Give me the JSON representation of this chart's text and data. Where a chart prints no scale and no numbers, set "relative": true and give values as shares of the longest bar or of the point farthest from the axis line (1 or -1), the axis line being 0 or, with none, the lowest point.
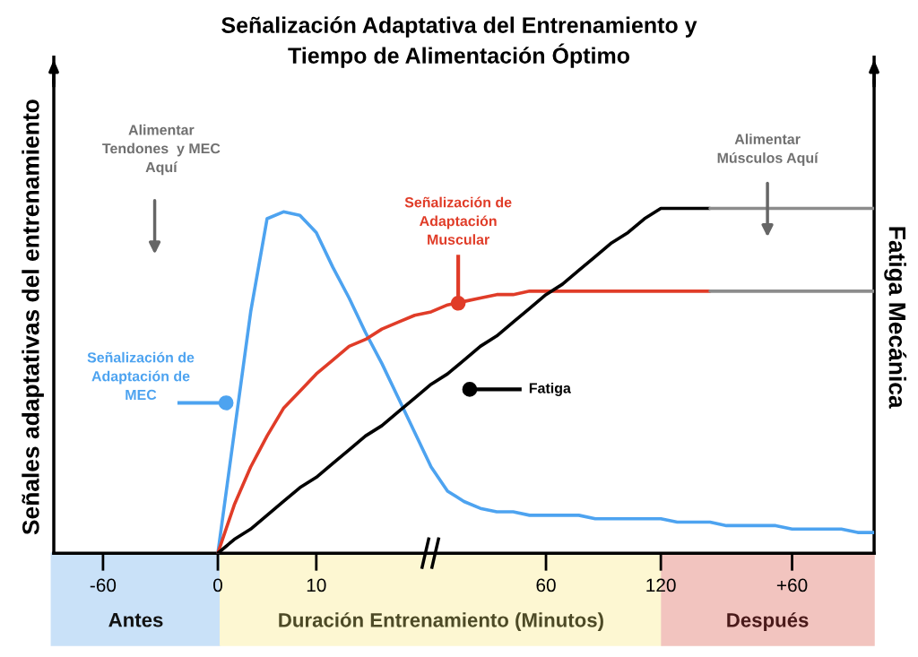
{
  "chart_data": {
    "type": "line",
    "title": "Señalización Adaptativa del Entrenamiento y\nTiempo de Alimentación Óptimo",
    "ylabel": "Señales adaptativas del entrenamiento",
    "y2label": "Fatiga Mecánica",
    "relative": true,
    "tick_labels": "x",
    "categories": [
      null,
      null,
      null,
      "-60",
      null,
      null,
      null,
      null,
      null,
      null,
      "0",
      null,
      null,
      null,
      null,
      null,
      "10",
      null,
      null,
      null,
      null,
      null,
      null,
      null,
      null,
      null,
      null,
      null,
      null,
      null,
      "60",
      null,
      null,
      null,
      null,
      null,
      null,
      "120",
      null,
      null,
      null,
      null,
      null,
      null,
      null,
      "+60",
      null,
      null,
      null,
      null,
      null
    ],
    "series": [
      {
        "name": "Señalización de\nAdaptación de\nMEC",
        "color": "#4da3f0",
        "values": [
          null,
          null,
          null,
          null,
          null,
          null,
          null,
          null,
          null,
          null,
          0,
          0.35,
          0.7,
          0.97,
          0.99,
          0.98,
          0.93,
          0.83,
          0.74,
          0.64,
          0.55,
          0.45,
          0.35,
          0.25,
          0.18,
          0.15,
          0.13,
          0.12,
          0.12,
          0.11,
          0.11,
          0.11,
          0.11,
          0.1,
          0.1,
          0.1,
          0.1,
          0.1,
          0.09,
          0.09,
          0.09,
          0.08,
          0.08,
          0.08,
          0.08,
          0.07,
          0.07,
          0.07,
          0.07,
          0.06,
          0.06
        ]
      },
      {
        "name": "Señalización de\nAdaptación\nMuscular",
        "color": "#e03c28",
        "values": [
          null,
          null,
          null,
          null,
          null,
          null,
          null,
          null,
          null,
          null,
          0,
          0.14,
          0.25,
          0.34,
          0.42,
          0.47,
          0.52,
          0.56,
          0.6,
          0.62,
          0.65,
          0.67,
          0.69,
          0.7,
          0.72,
          0.73,
          0.74,
          0.75,
          0.75,
          0.76,
          0.76,
          0.76,
          0.76,
          0.76,
          0.76,
          0.76,
          0.76,
          0.76,
          0.76,
          0.76,
          0.76,
          null,
          null,
          null,
          null,
          null,
          null,
          null,
          null,
          null,
          null
        ]
      },
      {
        "name": "Fatiga",
        "color": "#000000",
        "values": [
          null,
          null,
          null,
          null,
          null,
          null,
          null,
          null,
          null,
          null,
          0,
          0.04,
          0.07,
          0.11,
          0.15,
          0.19,
          0.22,
          0.26,
          0.3,
          0.34,
          0.37,
          0.41,
          0.45,
          0.49,
          0.52,
          0.56,
          0.6,
          0.63,
          0.67,
          0.71,
          0.75,
          0.78,
          0.82,
          0.86,
          0.9,
          0.93,
          0.97,
          1,
          1,
          1,
          1,
          null,
          null,
          null,
          null,
          null,
          null,
          null,
          null,
          null,
          null
        ]
      },
      {
        "color": "#8c8c8c",
        "values": [
          null,
          null,
          null,
          null,
          null,
          null,
          null,
          null,
          null,
          null,
          null,
          null,
          null,
          null,
          null,
          null,
          null,
          null,
          null,
          null,
          null,
          null,
          null,
          null,
          null,
          null,
          null,
          null,
          null,
          null,
          null,
          null,
          null,
          null,
          null,
          null,
          null,
          null,
          null,
          null,
          1,
          1,
          1,
          1,
          1,
          1,
          1,
          1,
          1,
          1,
          1
        ]
      },
      {
        "color": "#8c8c8c",
        "values": [
          null,
          null,
          null,
          null,
          null,
          null,
          null,
          null,
          null,
          null,
          null,
          null,
          null,
          null,
          null,
          null,
          null,
          null,
          null,
          null,
          null,
          null,
          null,
          null,
          null,
          null,
          null,
          null,
          null,
          null,
          null,
          null,
          null,
          null,
          null,
          null,
          null,
          null,
          null,
          null,
          0.76,
          0.76,
          0.76,
          0.76,
          0.76,
          0.76,
          0.76,
          0.76,
          0.76,
          0.76,
          0.76
        ]
      }
    ],
    "annotations": [
      "Alimentar\nTendones  y MEC\nAquí",
      "Alimentar\nMúsculos Aquí",
      "Antes",
      "Duración Entrenamiento (Minutos)",
      "Después"
    ]
  }
}
